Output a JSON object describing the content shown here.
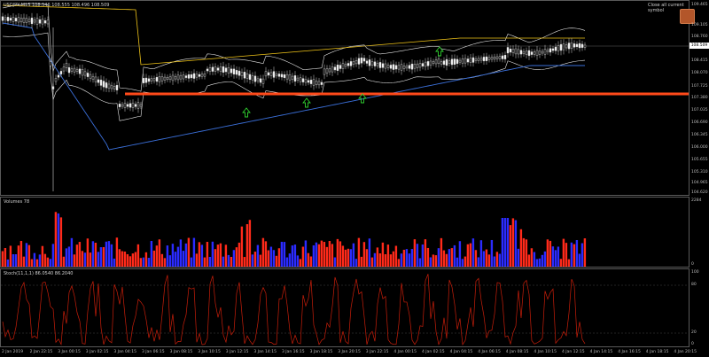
{
  "chart_header": {
    "symbol_info": "USDJPY,M15  108.546 108.555 108.496 108.509"
  },
  "close_all": {
    "label": "Close all current symbol"
  },
  "price_axis": {
    "labels": [
      "109.465",
      "109.105",
      "108.760",
      "108.415",
      "108.070",
      "107.725",
      "107.380",
      "107.035",
      "106.690",
      "106.345",
      "106.000",
      "105.655",
      "105.310",
      "104.965",
      "104.620"
    ],
    "current": "108.509"
  },
  "volume_pane": {
    "label": "Volumes 78",
    "axis_labels": [
      "2284",
      "0"
    ]
  },
  "stoch_pane": {
    "label": "Stoch(11,1,1) 86.0540 86.2040",
    "axis_labels": [
      "100",
      "80",
      "20",
      "0"
    ]
  },
  "time_axis": {
    "labels": [
      "2 Jan 2019",
      "2 Jan 22:15",
      "3 Jan 00:15",
      "3 Jan 02:15",
      "3 Jan 04:15",
      "3 Jan 06:15",
      "3 Jan 08:15",
      "3 Jan 10:15",
      "3 Jan 12:15",
      "3 Jan 14:15",
      "3 Jan 16:15",
      "3 Jan 18:15",
      "3 Jan 20:15",
      "3 Jan 22:15",
      "4 Jan 00:15",
      "4 Jan 02:15",
      "4 Jan 04:15",
      "4 Jan 06:15",
      "4 Jan 08:15",
      "4 Jan 10:15",
      "4 Jan 12:15",
      "4 Jan 14:15",
      "4 Jan 16:15",
      "4 Jan 18:15",
      "4 Jan 20:15"
    ]
  },
  "colors": {
    "support_line": "#ff4a1a",
    "volume_up": "#2b2bff",
    "volume_down": "#ff2a1a",
    "stoch": "#c81e0a",
    "bb_white": "#e6e6e6",
    "envelope_yellow": "#f0c419",
    "lower_blue": "#3a6fd8",
    "signal_arrow": "#2fd12f"
  },
  "icons": {
    "signal": "up-arrow-icon",
    "close_all": "close-all-button"
  }
}
